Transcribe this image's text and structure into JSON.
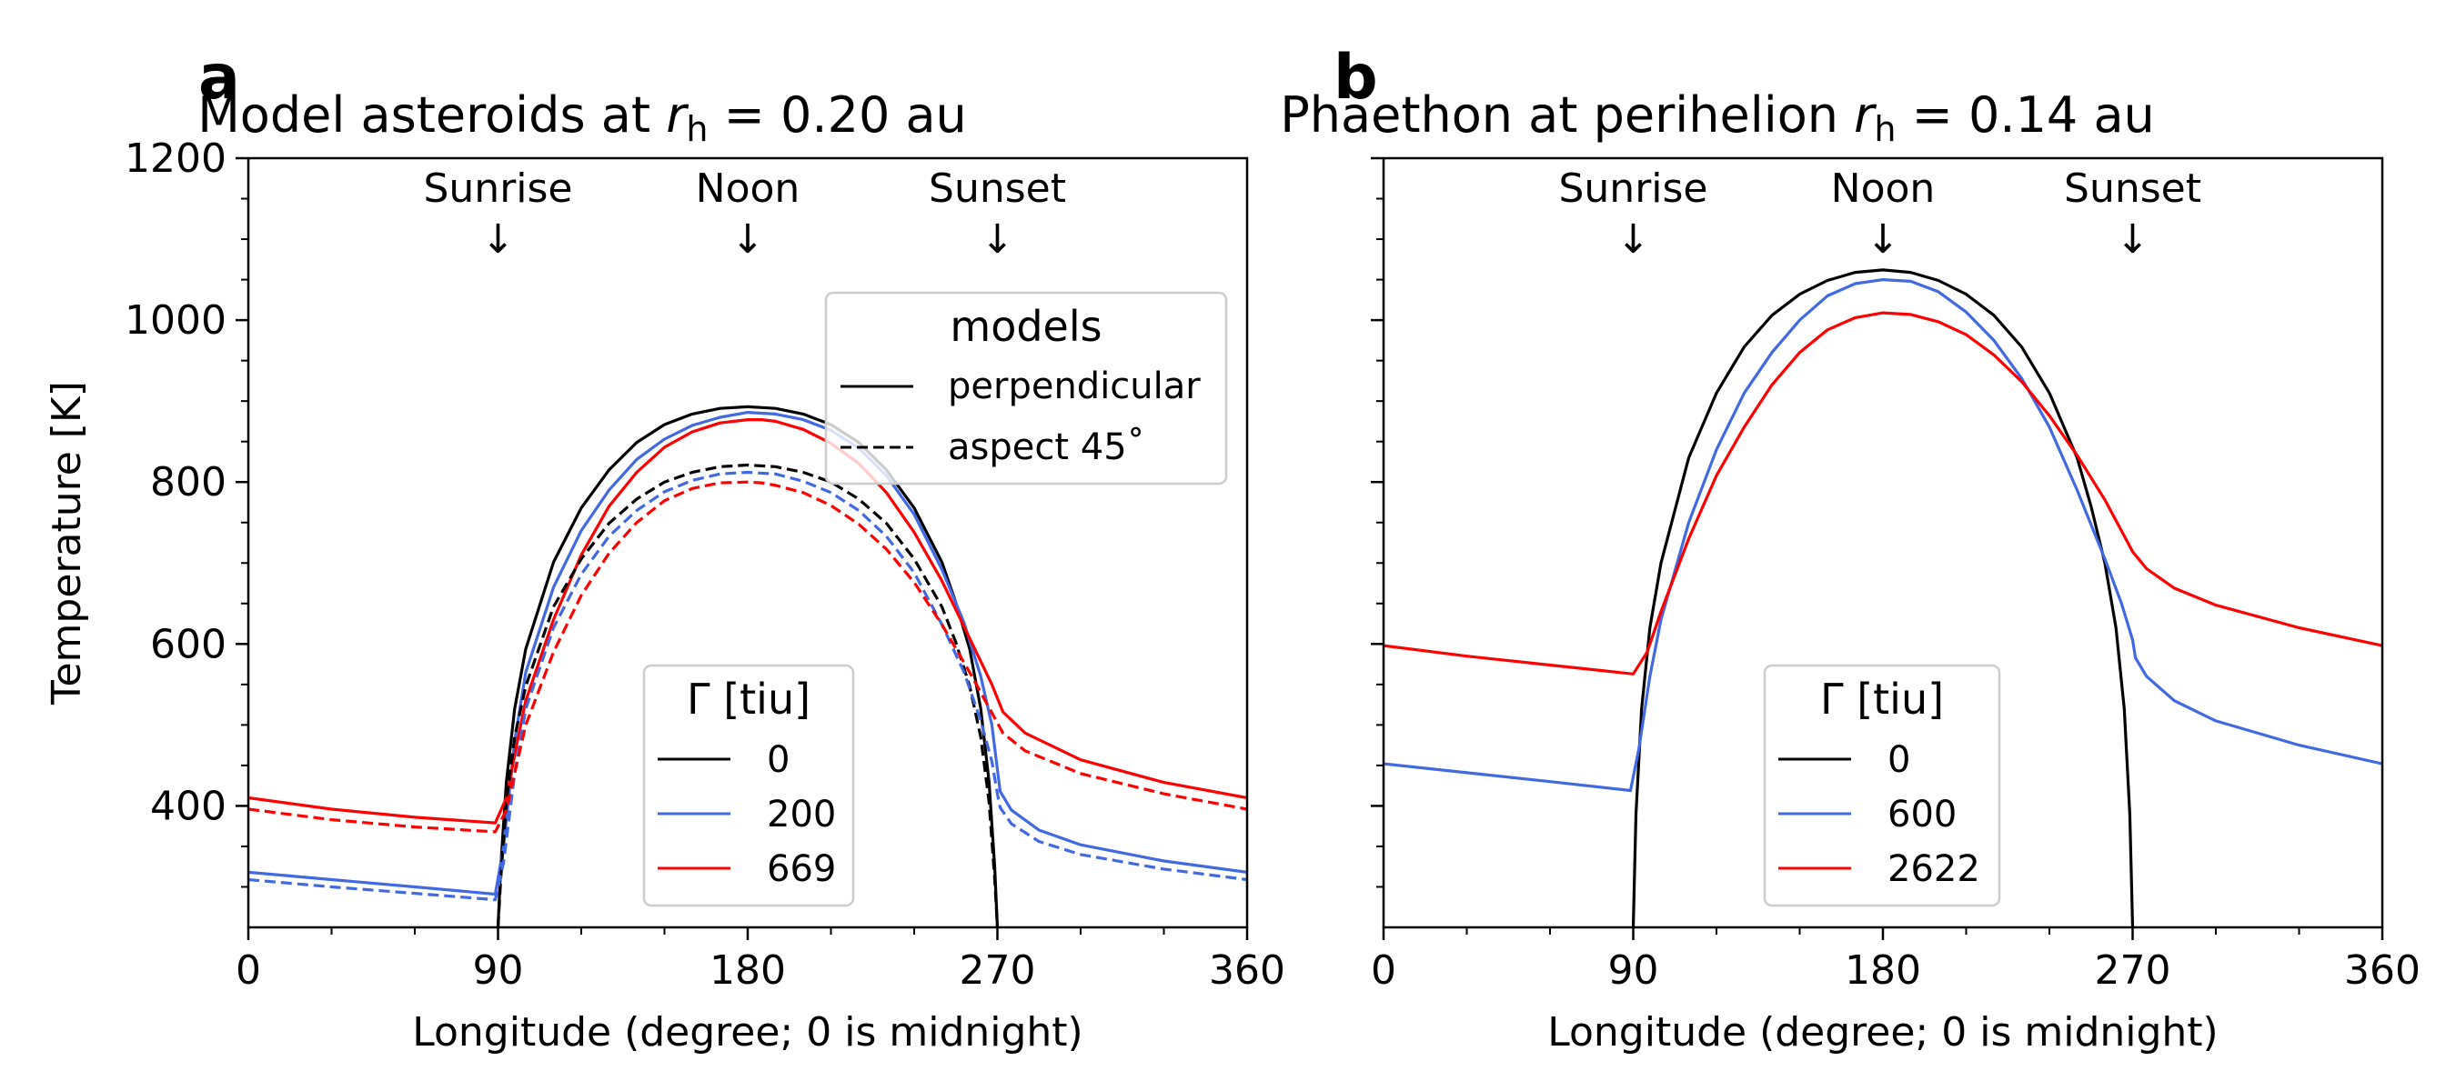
{
  "figure": {
    "colors": {
      "black": "#000000",
      "blue": "#4169e1",
      "red": "#ff0000",
      "legend_border": "#cccccc"
    }
  },
  "chart_data": [
    {
      "type": "line",
      "panel_letter": "a",
      "title": {
        "prefix": "Model asteroids at ",
        "var": "r",
        "sub": "h",
        "suffix": " = 0.20 au"
      },
      "xlabel": "Longitude (degree; 0 is midnight)",
      "ylabel": "Temperature [K]",
      "xlim": [
        0,
        360
      ],
      "ylim": [
        250,
        1200
      ],
      "xticks": [
        0,
        90,
        180,
        270,
        360
      ],
      "yticks": [
        400,
        600,
        800,
        1000,
        1200
      ],
      "annotations": [
        {
          "text": "Sunrise",
          "arrow": "↓",
          "x": 90
        },
        {
          "text": "Noon",
          "arrow": "↓",
          "x": 180
        },
        {
          "text": "Sunset",
          "arrow": "↓",
          "x": 270
        }
      ],
      "legend_models": {
        "title": "models",
        "placement": "upper right",
        "entries": [
          "perpendicular",
          "aspect 45˚"
        ]
      },
      "legend_gamma": {
        "title": "Γ [tiu]",
        "placement": "lower center",
        "entries": [
          "0",
          "200",
          "669"
        ]
      },
      "series": [
        {
          "name": "0",
          "model": "perpendicular",
          "color": "#000000",
          "dash": false,
          "x": [
            90,
            91,
            93,
            96,
            100,
            110,
            120,
            130,
            140,
            150,
            160,
            170,
            180,
            190,
            200,
            210,
            220,
            230,
            240,
            250,
            255,
            260,
            264,
            267,
            269,
            270
          ],
          "y": [
            250,
            325,
            430,
            520,
            594,
            701,
            768,
            815,
            849,
            871,
            884,
            891,
            893,
            891,
            884,
            871,
            849,
            815,
            768,
            701,
            651,
            594,
            520,
            430,
            325,
            250
          ]
        },
        {
          "name": "200",
          "model": "perpendicular",
          "color": "#4169e1",
          "dash": false,
          "x": [
            0,
            30,
            60,
            89,
            92,
            96,
            100,
            110,
            120,
            130,
            140,
            150,
            160,
            170,
            180,
            190,
            200,
            210,
            220,
            230,
            240,
            250,
            258,
            264,
            268,
            270,
            271,
            275,
            285,
            300,
            330,
            360
          ],
          "y": [
            318,
            309,
            300,
            291,
            350,
            480,
            565,
            670,
            740,
            790,
            828,
            853,
            870,
            880,
            886,
            884,
            877,
            864,
            842,
            808,
            760,
            692,
            626,
            560,
            500,
            445,
            418,
            395,
            370,
            352,
            332,
            318
          ]
        },
        {
          "name": "669",
          "model": "perpendicular",
          "color": "#ff0000",
          "dash": false,
          "x": [
            0,
            30,
            60,
            89,
            93,
            97,
            100,
            110,
            120,
            130,
            140,
            150,
            160,
            170,
            180,
            185,
            190,
            200,
            210,
            220,
            230,
            240,
            250,
            260,
            268,
            272,
            280,
            300,
            330,
            360
          ],
          "y": [
            410,
            396,
            386,
            379,
            410,
            480,
            530,
            630,
            710,
            770,
            812,
            843,
            862,
            873,
            877,
            877,
            875,
            865,
            848,
            823,
            787,
            738,
            678,
            607,
            550,
            516,
            490,
            457,
            429,
            410
          ]
        },
        {
          "name": "0",
          "model": "aspect 45˚",
          "color": "#000000",
          "dash": true,
          "x": [
            90,
            91,
            93,
            96,
            100,
            110,
            120,
            130,
            140,
            150,
            160,
            170,
            180,
            190,
            200,
            210,
            220,
            230,
            240,
            250,
            255,
            260,
            264,
            267,
            269,
            270
          ],
          "y": [
            250,
            310,
            405,
            485,
            548,
            646,
            705,
            749,
            779,
            800,
            812,
            819,
            821,
            819,
            812,
            800,
            779,
            749,
            705,
            646,
            602,
            548,
            485,
            405,
            310,
            250
          ]
        },
        {
          "name": "200",
          "model": "aspect 45˚",
          "color": "#4169e1",
          "dash": true,
          "x": [
            0,
            30,
            60,
            89,
            92,
            96,
            100,
            110,
            120,
            130,
            140,
            150,
            160,
            170,
            180,
            190,
            200,
            210,
            220,
            230,
            240,
            250,
            258,
            264,
            268,
            270,
            271,
            275,
            285,
            300,
            330,
            360
          ],
          "y": [
            309,
            300,
            292,
            284,
            330,
            440,
            520,
            620,
            686,
            733,
            765,
            788,
            802,
            810,
            812,
            810,
            801,
            787,
            765,
            733,
            688,
            624,
            565,
            505,
            455,
            415,
            398,
            378,
            356,
            340,
            322,
            309
          ]
        },
        {
          "name": "669",
          "model": "aspect 45˚",
          "color": "#ff0000",
          "dash": true,
          "x": [
            0,
            30,
            60,
            89,
            93,
            97,
            100,
            110,
            120,
            130,
            140,
            150,
            160,
            170,
            180,
            185,
            190,
            200,
            210,
            220,
            230,
            240,
            250,
            260,
            268,
            272,
            280,
            300,
            330,
            360
          ],
          "y": [
            396,
            383,
            374,
            368,
            395,
            455,
            500,
            590,
            660,
            712,
            750,
            777,
            792,
            799,
            800,
            799,
            796,
            787,
            771,
            748,
            717,
            676,
            624,
            565,
            515,
            490,
            468,
            440,
            415,
            396
          ]
        }
      ]
    },
    {
      "type": "line",
      "panel_letter": "b",
      "title": {
        "prefix": "Phaethon at perihelion ",
        "var": "r",
        "sub": "h",
        "suffix": " = 0.14 au"
      },
      "xlabel": "Longitude (degree; 0 is midnight)",
      "ylabel": "",
      "xlim": [
        0,
        360
      ],
      "ylim": [
        250,
        1200
      ],
      "xticks": [
        0,
        90,
        180,
        270,
        360
      ],
      "yticks": [
        400,
        600,
        800,
        1000,
        1200
      ],
      "annotations": [
        {
          "text": "Sunrise",
          "arrow": "↓",
          "x": 90
        },
        {
          "text": "Noon",
          "arrow": "↓",
          "x": 180
        },
        {
          "text": "Sunset",
          "arrow": "↓",
          "x": 270
        }
      ],
      "legend_gamma": {
        "title": "Γ [tiu]",
        "placement": "lower center",
        "entries": [
          "0",
          "600",
          "2622"
        ]
      },
      "series": [
        {
          "name": "0",
          "color": "#000000",
          "dash": false,
          "x": [
            90,
            91,
            93,
            96,
            100,
            110,
            120,
            130,
            140,
            150,
            160,
            170,
            180,
            190,
            200,
            210,
            220,
            230,
            240,
            250,
            255,
            260,
            264,
            267,
            269,
            270
          ],
          "y": [
            250,
            390,
            520,
            620,
            700,
            830,
            910,
            967,
            1006,
            1032,
            1049,
            1059,
            1062,
            1059,
            1049,
            1032,
            1006,
            967,
            910,
            830,
            770,
            700,
            620,
            520,
            390,
            250
          ]
        },
        {
          "name": "600",
          "color": "#4169e1",
          "dash": false,
          "x": [
            0,
            30,
            60,
            89,
            92,
            96,
            100,
            110,
            120,
            130,
            140,
            150,
            160,
            170,
            180,
            190,
            200,
            210,
            220,
            230,
            240,
            250,
            260,
            266,
            270,
            271,
            275,
            285,
            300,
            330,
            360
          ],
          "y": [
            452,
            441,
            430,
            419,
            470,
            560,
            630,
            750,
            840,
            910,
            960,
            1000,
            1030,
            1045,
            1050,
            1048,
            1035,
            1010,
            975,
            928,
            868,
            790,
            705,
            650,
            605,
            583,
            560,
            530,
            505,
            475,
            452
          ]
        },
        {
          "name": "2622",
          "color": "#ff0000",
          "dash": false,
          "x": [
            0,
            30,
            60,
            90,
            95,
            100,
            110,
            120,
            130,
            140,
            150,
            160,
            170,
            180,
            190,
            200,
            210,
            220,
            230,
            240,
            250,
            260,
            270,
            275,
            285,
            300,
            330,
            360
          ],
          "y": [
            598,
            585,
            574,
            563,
            590,
            640,
            730,
            808,
            868,
            920,
            960,
            988,
            1003,
            1009,
            1007,
            998,
            982,
            957,
            924,
            882,
            833,
            778,
            714,
            693,
            669,
            648,
            620,
            598
          ]
        }
      ]
    }
  ]
}
